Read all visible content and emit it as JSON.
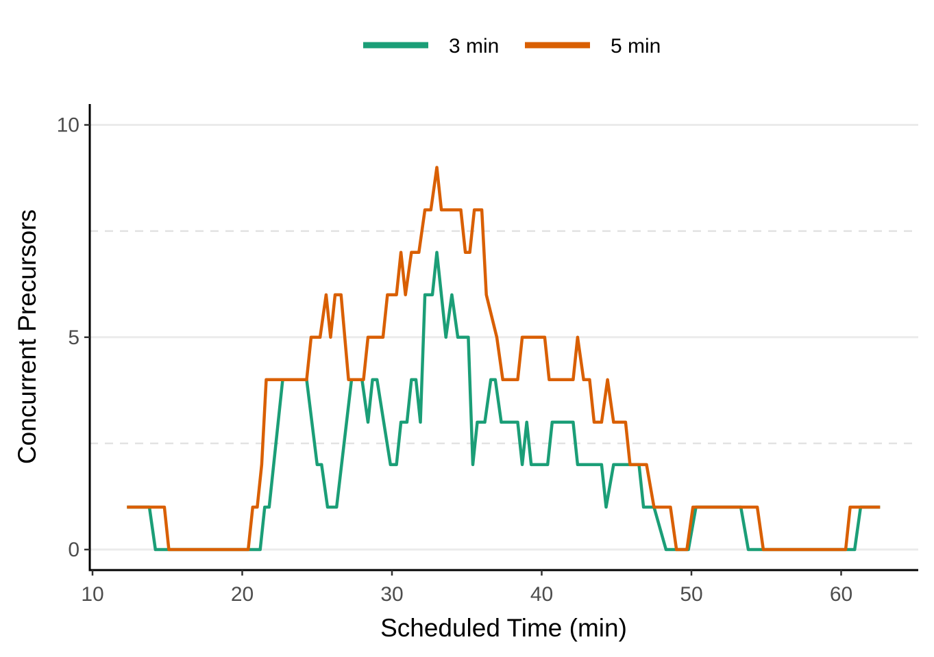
{
  "chart_data": {
    "type": "line",
    "title": "",
    "xlabel": "Scheduled Time (min)",
    "ylabel": "Concurrent Precursors",
    "xlim": [
      10,
      65
    ],
    "ylim": [
      -0.5,
      10.5
    ],
    "xticks": [
      10,
      20,
      30,
      40,
      50,
      60
    ],
    "yticks": [
      0,
      5,
      10
    ],
    "grid": {
      "major_y": [
        0,
        5,
        10
      ],
      "minor_y_dashed": [
        2.5,
        7.5
      ]
    },
    "legend": "top",
    "series": [
      {
        "name": "3 min",
        "color": "#1B9E77",
        "points": [
          [
            12.3,
            1
          ],
          [
            13.8,
            1
          ],
          [
            14.2,
            0
          ],
          [
            21.2,
            0
          ],
          [
            21.5,
            1
          ],
          [
            21.8,
            1
          ],
          [
            22.7,
            4
          ],
          [
            24.3,
            4
          ],
          [
            25.0,
            2
          ],
          [
            25.3,
            2
          ],
          [
            25.7,
            1
          ],
          [
            26.3,
            1
          ],
          [
            27.3,
            4
          ],
          [
            28.0,
            4
          ],
          [
            28.4,
            3
          ],
          [
            28.7,
            4
          ],
          [
            29.0,
            4
          ],
          [
            29.9,
            2
          ],
          [
            30.3,
            2
          ],
          [
            30.6,
            3
          ],
          [
            31.0,
            3
          ],
          [
            31.3,
            4
          ],
          [
            31.6,
            4
          ],
          [
            31.9,
            3
          ],
          [
            32.2,
            6
          ],
          [
            32.7,
            6
          ],
          [
            33.0,
            7
          ],
          [
            33.6,
            5
          ],
          [
            34.0,
            6
          ],
          [
            34.4,
            5
          ],
          [
            35.1,
            5
          ],
          [
            35.4,
            2
          ],
          [
            35.7,
            3
          ],
          [
            36.2,
            3
          ],
          [
            36.6,
            4
          ],
          [
            36.9,
            4
          ],
          [
            37.3,
            3
          ],
          [
            38.4,
            3
          ],
          [
            38.7,
            2
          ],
          [
            39.0,
            3
          ],
          [
            39.3,
            2
          ],
          [
            40.4,
            2
          ],
          [
            40.7,
            3
          ],
          [
            42.1,
            3
          ],
          [
            42.4,
            2
          ],
          [
            44.0,
            2
          ],
          [
            44.3,
            1
          ],
          [
            44.8,
            2
          ],
          [
            45.5,
            2
          ],
          [
            46.5,
            2
          ],
          [
            46.8,
            1
          ],
          [
            47.5,
            1
          ],
          [
            48.3,
            0
          ],
          [
            49.8,
            0
          ],
          [
            50.3,
            1
          ],
          [
            53.3,
            1
          ],
          [
            53.8,
            0
          ],
          [
            60.9,
            0
          ],
          [
            61.3,
            1
          ],
          [
            62.6,
            1
          ]
        ]
      },
      {
        "name": "5 min",
        "color": "#D95F02",
        "points": [
          [
            12.3,
            1
          ],
          [
            14.8,
            1
          ],
          [
            15.1,
            0
          ],
          [
            20.4,
            0
          ],
          [
            20.7,
            1
          ],
          [
            21.0,
            1
          ],
          [
            21.3,
            2
          ],
          [
            21.6,
            4
          ],
          [
            24.3,
            4
          ],
          [
            24.6,
            5
          ],
          [
            25.2,
            5
          ],
          [
            25.6,
            6
          ],
          [
            25.9,
            5
          ],
          [
            26.2,
            6
          ],
          [
            26.6,
            6
          ],
          [
            27.1,
            4
          ],
          [
            28.1,
            4
          ],
          [
            28.4,
            5
          ],
          [
            29.4,
            5
          ],
          [
            29.7,
            6
          ],
          [
            30.3,
            6
          ],
          [
            30.6,
            7
          ],
          [
            30.9,
            6
          ],
          [
            31.3,
            7
          ],
          [
            31.8,
            7
          ],
          [
            32.2,
            8
          ],
          [
            32.6,
            8
          ],
          [
            33.0,
            9
          ],
          [
            33.3,
            8
          ],
          [
            34.6,
            8
          ],
          [
            34.9,
            7
          ],
          [
            35.2,
            7
          ],
          [
            35.5,
            8
          ],
          [
            36.0,
            8
          ],
          [
            36.3,
            6
          ],
          [
            37.0,
            5
          ],
          [
            37.4,
            4
          ],
          [
            38.4,
            4
          ],
          [
            38.7,
            5
          ],
          [
            40.2,
            5
          ],
          [
            40.5,
            4
          ],
          [
            42.1,
            4
          ],
          [
            42.4,
            5
          ],
          [
            42.8,
            4
          ],
          [
            43.2,
            4
          ],
          [
            43.5,
            3
          ],
          [
            44.0,
            3
          ],
          [
            44.4,
            4
          ],
          [
            44.8,
            3
          ],
          [
            45.6,
            3
          ],
          [
            45.9,
            2
          ],
          [
            47.0,
            2
          ],
          [
            47.5,
            1
          ],
          [
            48.6,
            1
          ],
          [
            49.0,
            0
          ],
          [
            49.7,
            0
          ],
          [
            50.1,
            1
          ],
          [
            54.4,
            1
          ],
          [
            54.8,
            0
          ],
          [
            60.3,
            0
          ],
          [
            60.6,
            1
          ],
          [
            62.6,
            1
          ]
        ]
      }
    ]
  }
}
